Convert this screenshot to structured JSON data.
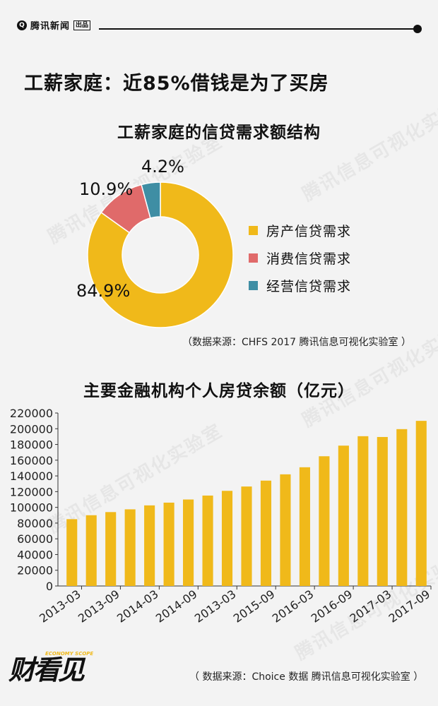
{
  "header": {
    "brand_mark": "Q",
    "brand_name": "腾讯新闻",
    "brand_box": "出品"
  },
  "main_title": "工薪家庭：近85%借钱是为了买房",
  "watermark_text": "腾讯信息可视化实验室",
  "colors": {
    "gold": "#f0b91a",
    "red": "#e06a6a",
    "teal": "#3f8ea4"
  },
  "chart_data": [
    {
      "type": "pie",
      "title": "工薪家庭的信贷需求额结构",
      "labels": [
        "房产信贷需求",
        "消费信贷需求",
        "经营信贷需求"
      ],
      "values": [
        84.9,
        10.9,
        4.2
      ],
      "value_labels": [
        "84.9%",
        "10.9%",
        "4.2%"
      ],
      "colors": [
        "#f0b91a",
        "#e06a6a",
        "#3f8ea4"
      ],
      "legend_position": "right",
      "source": "（数据来源：CHFS 2017 腾讯信息可视化实验室 ）"
    },
    {
      "type": "bar",
      "title": "主要金融机构个人房贷余额（亿元）",
      "tick_labels": [
        "2013-03",
        "2013-09",
        "2014-03",
        "2014-09",
        "2013-03",
        "2015-09",
        "2016-03",
        "2016-09",
        "2017-03",
        "2017-09"
      ],
      "values": [
        85000,
        90000,
        94000,
        97500,
        102500,
        106000,
        110000,
        115000,
        121000,
        126500,
        134000,
        142000,
        151000,
        165000,
        178500,
        190500,
        189500,
        199500,
        210000
      ],
      "yticks": [
        0,
        20000,
        40000,
        60000,
        80000,
        100000,
        120000,
        140000,
        160000,
        180000,
        200000,
        220000
      ],
      "ylim": [
        0,
        220000
      ],
      "color": "#f0b91a",
      "grid": false,
      "source": "（ 数据来源：Choice 数据 腾讯信息可视化实验室 ）"
    }
  ],
  "footer_logo": {
    "main": "财看见",
    "sub": "ECONOMY SCOPE"
  }
}
